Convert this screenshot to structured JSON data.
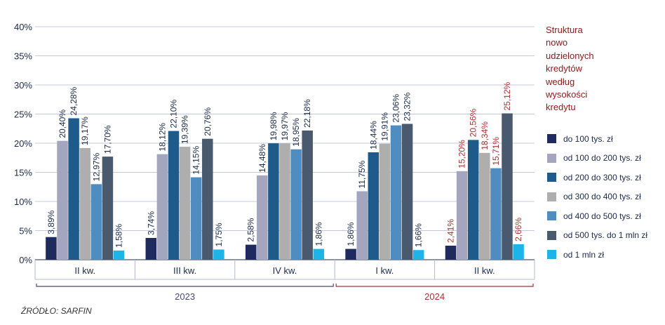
{
  "chart_data": {
    "type": "bar",
    "title_lines": [
      "Struktura",
      "nowo",
      "udzielonych",
      "kredytów",
      "według",
      "wysokości",
      "kredytu"
    ],
    "categories": [
      "II kw.",
      "III kw.",
      "IV kw.",
      "I kw.",
      "II kw."
    ],
    "years": [
      {
        "label": "2023",
        "color": "#4a4a7a",
        "from": 0,
        "to": 2
      },
      {
        "label": "2024",
        "color": "#a83232",
        "from": 3,
        "to": 4
      }
    ],
    "ylim": [
      0,
      40
    ],
    "yticks": [
      "0%",
      "5%",
      "10%",
      "15%",
      "20%",
      "25%",
      "30%",
      "35%",
      "40%"
    ],
    "grid": true,
    "series": [
      {
        "name": "do 100 tys. zł",
        "color": "#1f2a5e",
        "values": [
          3.89,
          3.74,
          2.58,
          1.86,
          2.41
        ],
        "labels": [
          "3,89%",
          "3,74%",
          "2,58%",
          "1,86%",
          "2,41%"
        ]
      },
      {
        "name": "od 100 do 200 tys. zł",
        "color": "#a4a6c0",
        "values": [
          20.4,
          18.12,
          14.48,
          11.75,
          15.2
        ],
        "labels": [
          "20,40%",
          "18,12%",
          "14,48%",
          "11,75%",
          "15,20%"
        ]
      },
      {
        "name": "od 200 do 300 tys. zł",
        "color": "#1e5a8a",
        "values": [
          24.28,
          22.1,
          19.98,
          18.44,
          20.56
        ],
        "labels": [
          "24,28%",
          "22,10%",
          "19,98%",
          "18,44%",
          "20,56%"
        ]
      },
      {
        "name": "od 300 do 400 tys. zł",
        "color": "#aeaeae",
        "values": [
          19.17,
          19.39,
          19.97,
          19.91,
          18.34
        ],
        "labels": [
          "19,17%",
          "19,39%",
          "19,97%",
          "19,91%",
          "18,34%"
        ]
      },
      {
        "name": "od 400 do 500 tys. zł",
        "color": "#4f8dc0",
        "values": [
          12.97,
          14.15,
          18.95,
          23.06,
          15.71
        ],
        "labels": [
          "12,97%",
          "14,15%",
          "18,95%",
          "23,06%",
          "15,71%"
        ]
      },
      {
        "name": "od 500 tys. do 1 mln zł",
        "color": "#4a5a6e",
        "values": [
          17.7,
          20.76,
          22.18,
          23.32,
          25.12
        ],
        "labels": [
          "17,70%",
          "20,76%",
          "22,18%",
          "23,32%",
          "25,12%"
        ]
      },
      {
        "name": "od 1 mln zł",
        "color": "#1eb4e8",
        "values": [
          1.58,
          1.75,
          1.86,
          1.66,
          2.66
        ],
        "labels": [
          "1,58%",
          "1,75%",
          "1,86%",
          "1,66%",
          "2,66%"
        ]
      }
    ],
    "label_colors": [
      "#1b2a4a",
      "#1b2a4a",
      "#1b2a4a",
      "#1b2a4a",
      "#a83232"
    ],
    "legend_position": "right"
  },
  "source": "ŹRÓDŁO: SARFIN"
}
